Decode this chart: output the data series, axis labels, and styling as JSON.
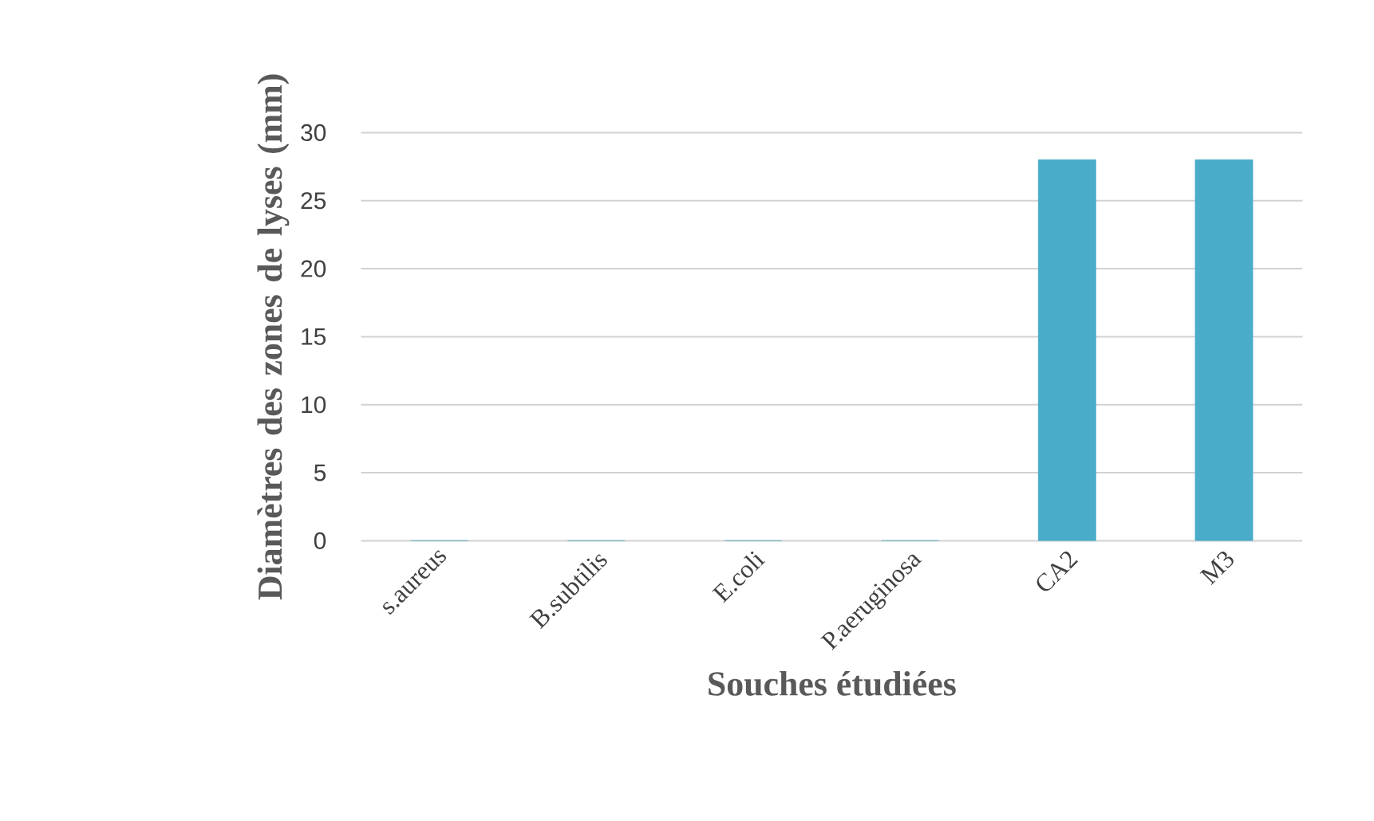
{
  "chart_data": {
    "type": "bar",
    "xlabel": "Souches étudiées",
    "ylabel": "Diamètres des zones de lyses (mm)",
    "categories": [
      "s.aureus",
      "B.subtilis",
      "E.coli",
      "P.aeruginosa",
      "CA2",
      "M3"
    ],
    "values": [
      0,
      0,
      0,
      0,
      28,
      28
    ],
    "color": "#49acc8",
    "ylim": [
      0,
      30
    ],
    "yticks": [
      0,
      5,
      10,
      15,
      20,
      25,
      30
    ],
    "grid": "y"
  }
}
